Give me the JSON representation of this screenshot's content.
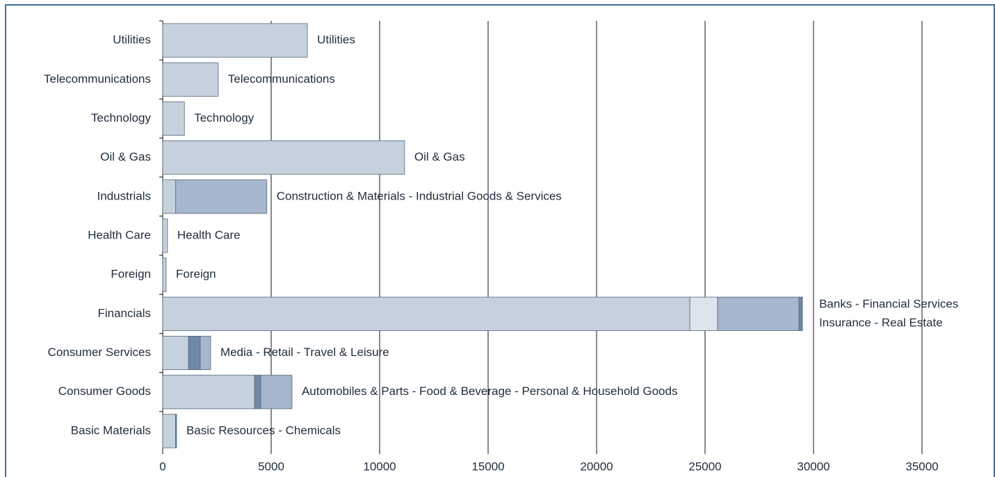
{
  "chart_data": {
    "type": "stacked-barh",
    "categories": [
      "Utilities",
      "Telecommunications",
      "Technology",
      "Oil & Gas",
      "Industrials",
      "Health Care",
      "Foreign",
      "Financials",
      "Consumer Services",
      "Consumer Goods",
      "Basic Materials"
    ],
    "series": [
      {
        "values": [
          6670,
          2560,
          1000,
          11150,
          600,
          220,
          160,
          24300,
          1190,
          4230,
          590
        ],
        "colors": [
          "#c5d2de",
          "#c5d2de",
          "#c5d2de",
          "#c5d2de",
          "#c5d2de",
          "#c5d2de",
          "#c5d2de",
          "#c5d2de",
          "#c5d2de",
          "#c5d2de",
          "#c5d2de"
        ]
      },
      {
        "values": [
          null,
          null,
          null,
          null,
          4200,
          null,
          null,
          1280,
          540,
          290,
          50
        ],
        "colors": [
          null,
          null,
          null,
          null,
          "#a6b6cc",
          null,
          null,
          "#dde4eb",
          "#7189a8",
          "#7189a8",
          "#7189a8"
        ]
      },
      {
        "values": [
          null,
          null,
          null,
          null,
          null,
          null,
          null,
          3750,
          480,
          1440,
          null
        ],
        "colors": [
          null,
          null,
          null,
          null,
          null,
          null,
          null,
          "#a6b6cc",
          "#a6b6cc",
          "#a6b6cc",
          null
        ]
      },
      {
        "values": [
          null,
          null,
          null,
          null,
          null,
          null,
          null,
          160,
          null,
          null,
          null
        ],
        "colors": [
          null,
          null,
          null,
          null,
          null,
          null,
          null,
          "#6f86a5",
          null,
          null,
          null
        ]
      }
    ],
    "annotations": [
      [
        "Utilities"
      ],
      [
        "Telecommunications"
      ],
      [
        "Technology"
      ],
      [
        "Oil & Gas"
      ],
      [
        "Construction & Materials - Industrial Goods & Services"
      ],
      [
        "Health Care"
      ],
      [
        "Foreign"
      ],
      [
        "Banks - Financial Services",
        "Insurance - Real Estate"
      ],
      [
        "Media - Retail - Travel & Leisure"
      ],
      [
        "Automobiles & Parts - Food & Beverage  - Personal & Household Goods"
      ],
      [
        "Basic Resources - Chemicals"
      ]
    ],
    "xlim": [
      0,
      35000
    ],
    "xticks": [
      0,
      5000,
      10000,
      15000,
      20000,
      25000,
      30000,
      35000
    ],
    "grid": true
  }
}
